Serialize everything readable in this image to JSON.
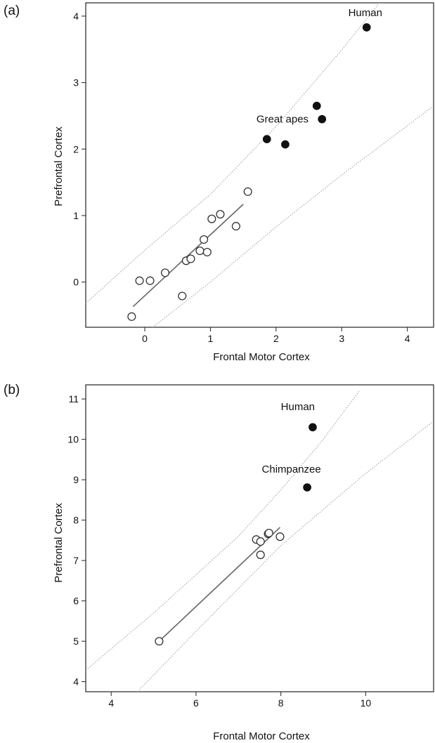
{
  "chart_data": [
    {
      "panel_label": "(a)",
      "type": "scatter",
      "xlabel": "Frontal Motor Cortex",
      "ylabel": "Prefrontal Cortex",
      "xlim": [
        -0.9,
        4.4
      ],
      "ylim": [
        -0.68,
        4.2
      ],
      "xticks": [
        0,
        1,
        2,
        3,
        4
      ],
      "yticks": [
        0,
        1,
        2,
        3,
        4
      ],
      "grid": false,
      "series": [
        {
          "marker": "open-circle",
          "points": [
            [
              -0.2,
              -0.52
            ],
            [
              -0.08,
              0.02
            ],
            [
              0.08,
              0.02
            ],
            [
              0.31,
              0.14
            ],
            [
              0.57,
              -0.21
            ],
            [
              0.63,
              0.32
            ],
            [
              0.7,
              0.35
            ],
            [
              0.84,
              0.47
            ],
            [
              0.9,
              0.64
            ],
            [
              0.95,
              0.45
            ],
            [
              1.02,
              0.95
            ],
            [
              1.15,
              1.02
            ],
            [
              1.39,
              0.84
            ],
            [
              1.57,
              1.36
            ]
          ]
        },
        {
          "marker": "filled-circle",
          "points": [
            [
              1.86,
              2.15
            ],
            [
              2.14,
              2.07
            ],
            [
              2.62,
              2.65
            ],
            [
              2.7,
              2.45
            ],
            [
              3.38,
              3.83
            ]
          ]
        }
      ],
      "regression_line": [
        [
          -0.18,
          -0.37
        ],
        [
          1.5,
          1.17
        ]
      ],
      "prediction_bands": {
        "upper": [
          [
            -0.9,
            -0.32
          ],
          [
            0.0,
            0.48
          ],
          [
            1.0,
            1.32
          ],
          [
            2.0,
            2.34
          ],
          [
            3.0,
            3.49
          ],
          [
            3.96,
            4.67
          ]
        ],
        "lower": [
          [
            0.12,
            -0.68
          ],
          [
            1.0,
            0.0
          ],
          [
            2.0,
            0.83
          ],
          [
            3.0,
            1.61
          ],
          [
            4.0,
            2.35
          ],
          [
            4.4,
            2.65
          ]
        ]
      },
      "annotations": [
        {
          "text": "Human",
          "x": 3.1,
          "y": 4.0
        },
        {
          "text": "Great apes",
          "x": 1.7,
          "y": 2.4
        }
      ]
    },
    {
      "panel_label": "(b)",
      "type": "scatter",
      "xlabel": "Frontal Motor Cortex",
      "ylabel": "Prefrontal Cortex",
      "xlim": [
        3.4,
        11.6
      ],
      "ylim": [
        3.75,
        11.35
      ],
      "xticks": [
        4,
        6,
        8,
        10
      ],
      "yticks": [
        4,
        5,
        6,
        7,
        8,
        9,
        10,
        11
      ],
      "grid": false,
      "series": [
        {
          "marker": "open-circle",
          "points": [
            [
              5.13,
              5.0
            ],
            [
              7.42,
              7.52
            ],
            [
              7.52,
              7.47
            ],
            [
              7.52,
              7.14
            ],
            [
              7.7,
              7.66
            ],
            [
              7.72,
              7.68
            ],
            [
              7.98,
              7.59
            ]
          ]
        },
        {
          "marker": "filled-circle",
          "points": [
            [
              8.62,
              8.81
            ],
            [
              8.75,
              10.3
            ]
          ]
        }
      ],
      "regression_line": [
        [
          5.13,
          5.0
        ],
        [
          7.98,
          7.82
        ]
      ],
      "prediction_bands": {
        "upper": [
          [
            3.4,
            4.28
          ],
          [
            5.0,
            5.7
          ],
          [
            7.0,
            7.6
          ],
          [
            8.0,
            8.75
          ],
          [
            9.0,
            10.0
          ],
          [
            9.85,
            11.2
          ]
        ],
        "lower": [
          [
            4.62,
            3.75
          ],
          [
            6.0,
            5.25
          ],
          [
            8.0,
            7.37
          ],
          [
            10.0,
            9.16
          ],
          [
            11.6,
            10.45
          ]
        ]
      },
      "annotations": [
        {
          "text": "Human",
          "x": 8.0,
          "y": 10.72
        },
        {
          "text": "Chimpanzee",
          "x": 7.55,
          "y": 9.18
        }
      ]
    }
  ]
}
